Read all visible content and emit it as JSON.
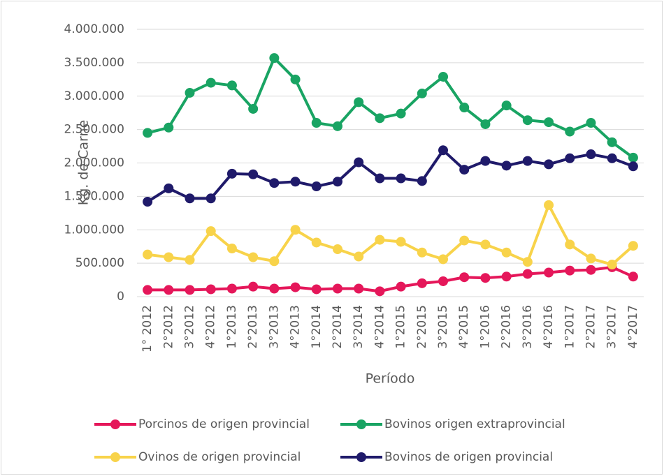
{
  "chart_data": {
    "type": "line",
    "y_label": "Kg. de Carne",
    "x_label": "Período",
    "categories": [
      "1° 2012",
      "2°2012",
      "3°2012",
      "4°2012",
      "1°2013",
      "2°2013",
      "3°2013",
      "4°2013",
      "1°2014",
      "2°2014",
      "3°2014",
      "4°2014",
      "1°2015",
      "2°2015",
      "3°2015",
      "4°2015",
      "1°2016",
      "2°2016",
      "3°2016",
      "4°2016",
      "1°2017",
      "2°2017",
      "3°2017",
      "4°2017"
    ],
    "series": [
      {
        "name": "Porcinos de origen provincial",
        "color": "#e5175a",
        "values": [
          100000,
          100000,
          100000,
          110000,
          120000,
          150000,
          120000,
          140000,
          110000,
          120000,
          120000,
          80000,
          150000,
          200000,
          230000,
          290000,
          280000,
          300000,
          340000,
          360000,
          390000,
          400000,
          440000,
          300000
        ]
      },
      {
        "name": "Bovinos origen extraprovincial",
        "color": "#19a463",
        "values": [
          2450000,
          2530000,
          3050000,
          3200000,
          3160000,
          2810000,
          3570000,
          3250000,
          2600000,
          2550000,
          2910000,
          2670000,
          2740000,
          3040000,
          3290000,
          2830000,
          2580000,
          2860000,
          2640000,
          2610000,
          2470000,
          2600000,
          2310000,
          2080000
        ]
      },
      {
        "name": "Ovinos de origen provincial",
        "color": "#f8d34a",
        "values": [
          630000,
          590000,
          550000,
          980000,
          720000,
          590000,
          530000,
          1000000,
          810000,
          710000,
          600000,
          850000,
          820000,
          660000,
          560000,
          840000,
          780000,
          660000,
          520000,
          1370000,
          780000,
          570000,
          480000,
          760000
        ]
      },
      {
        "name": "Bovinos de origen provincial",
        "color": "#1f1a6a",
        "values": [
          1420000,
          1620000,
          1470000,
          1470000,
          1840000,
          1830000,
          1700000,
          1720000,
          1650000,
          1720000,
          2010000,
          1770000,
          1770000,
          1730000,
          2190000,
          1900000,
          2030000,
          1960000,
          2030000,
          1980000,
          2070000,
          2130000,
          2070000,
          1950000
        ]
      }
    ],
    "ylim": [
      0,
      4000000
    ],
    "yticks": [
      0,
      {
        "value": 500000,
        "label": "500.000"
      },
      {
        "value": 1000000,
        "label": "1.000.000"
      },
      {
        "value": 1500000,
        "label": "1.500.000"
      },
      {
        "value": 2000000,
        "label": "2.000.000"
      },
      {
        "value": 2500000,
        "label": "2.500.000"
      },
      {
        "value": 3000000,
        "label": "3.000.000"
      },
      {
        "value": 3500000,
        "label": "3.500.000"
      },
      {
        "value": 4000000,
        "label": "4.000.000"
      }
    ],
    "grid": true
  }
}
